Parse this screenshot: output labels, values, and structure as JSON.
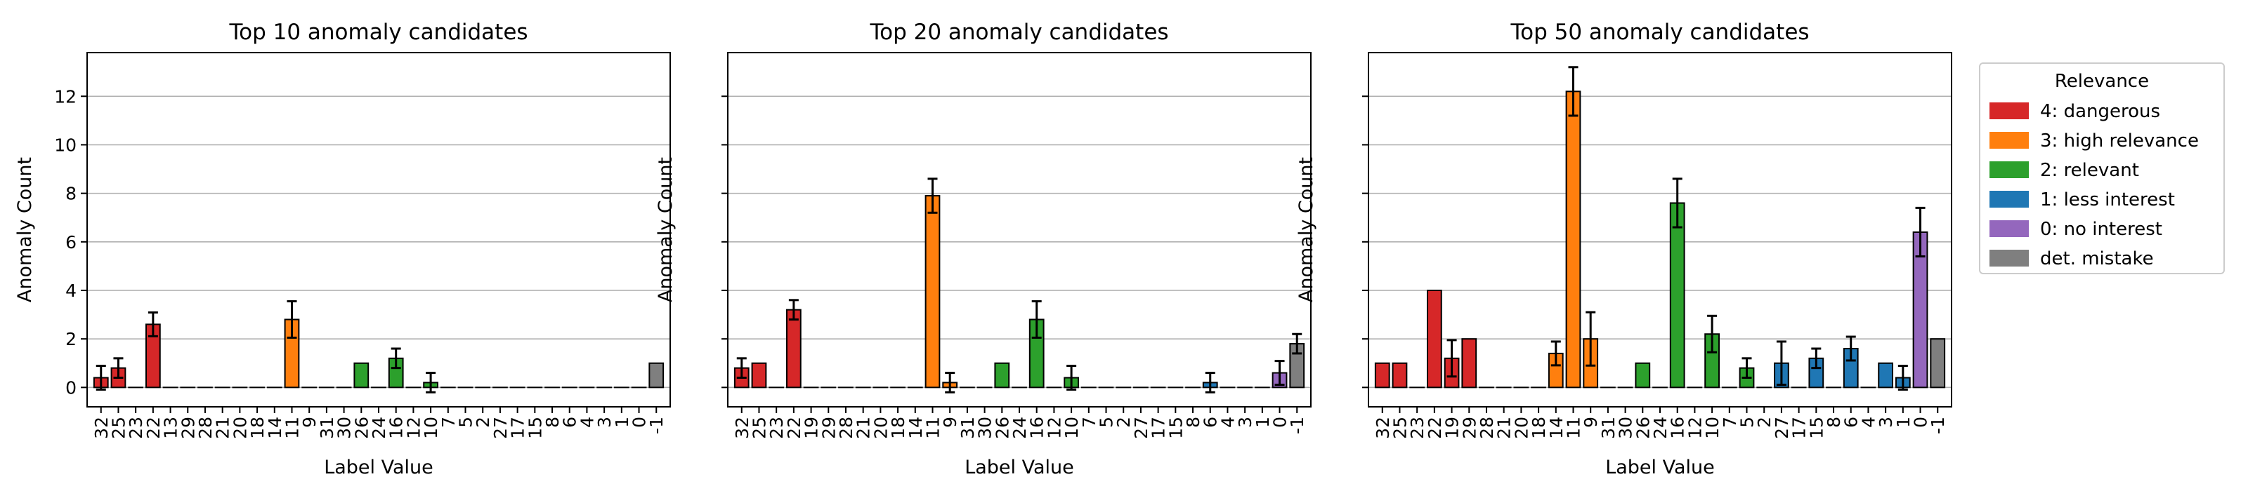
{
  "chart_data": [
    {
      "type": "bar",
      "title": "Top 10 anomaly candidates",
      "xlabel": "Label Value",
      "ylabel": "Anomaly Count",
      "ylim": [
        -0.8,
        13.8
      ],
      "yticks": [
        0,
        2,
        4,
        6,
        8,
        10,
        12
      ],
      "grid": "y",
      "categories": [
        "32",
        "25",
        "23",
        "22",
        "13",
        "29",
        "28",
        "21",
        "20",
        "18",
        "14",
        "11",
        "9",
        "31",
        "30",
        "26",
        "24",
        "16",
        "12",
        "10",
        "7",
        "5",
        "2",
        "27",
        "17",
        "15",
        "8",
        "6",
        "4",
        "3",
        "1",
        "0",
        "-1"
      ],
      "relevance": [
        4,
        4,
        4,
        4,
        3,
        3,
        3,
        3,
        3,
        3,
        3,
        3,
        3,
        2,
        2,
        2,
        2,
        2,
        2,
        2,
        2,
        2,
        2,
        1,
        1,
        1,
        1,
        1,
        1,
        1,
        1,
        0,
        -1
      ],
      "values": [
        0.4,
        0.8,
        0,
        2.6,
        0,
        0,
        0,
        0,
        0,
        0,
        0,
        2.8,
        0,
        0,
        0,
        1,
        0,
        1.2,
        0,
        0.2,
        0,
        0,
        0,
        0,
        0,
        0,
        0,
        0,
        0,
        0,
        0,
        0,
        1
      ],
      "errors": [
        0.49,
        0.4,
        0,
        0.49,
        0,
        0,
        0,
        0,
        0,
        0,
        0,
        0.75,
        0,
        0,
        0,
        0,
        0,
        0.4,
        0,
        0.4,
        0,
        0,
        0,
        0,
        0,
        0,
        0,
        0,
        0,
        0,
        0,
        0,
        0
      ]
    },
    {
      "type": "bar",
      "title": "Top 20 anomaly candidates",
      "xlabel": "Label Value",
      "ylabel": "Anomaly Count",
      "ylim": [
        -0.8,
        13.8
      ],
      "yticks": [
        0,
        2,
        4,
        6,
        8,
        10,
        12
      ],
      "grid": "y",
      "categories": [
        "32",
        "25",
        "23",
        "22",
        "19",
        "29",
        "28",
        "21",
        "20",
        "18",
        "14",
        "11",
        "9",
        "31",
        "30",
        "26",
        "24",
        "16",
        "12",
        "10",
        "7",
        "5",
        "2",
        "27",
        "17",
        "15",
        "8",
        "6",
        "4",
        "3",
        "1",
        "0",
        "-1"
      ],
      "relevance": [
        4,
        4,
        4,
        4,
        4,
        3,
        3,
        3,
        3,
        3,
        3,
        3,
        3,
        2,
        2,
        2,
        2,
        2,
        2,
        2,
        2,
        2,
        2,
        1,
        1,
        1,
        1,
        1,
        1,
        1,
        1,
        0,
        -1
      ],
      "values": [
        0.8,
        1,
        0,
        3.2,
        0,
        0,
        0,
        0,
        0,
        0,
        0,
        7.9,
        0.2,
        0,
        0,
        1,
        0,
        2.8,
        0,
        0.4,
        0,
        0,
        0,
        0,
        0,
        0,
        0,
        0.2,
        0,
        0,
        0,
        0.6,
        1.8
      ],
      "errors": [
        0.4,
        0,
        0,
        0.4,
        0,
        0,
        0,
        0,
        0,
        0,
        0,
        0.7,
        0.4,
        0,
        0,
        0,
        0,
        0.75,
        0,
        0.49,
        0,
        0,
        0,
        0,
        0,
        0,
        0,
        0.4,
        0,
        0,
        0,
        0.49,
        0.4
      ]
    },
    {
      "type": "bar",
      "title": "Top 50 anomaly candidates",
      "xlabel": "Label Value",
      "ylabel": "Anomaly Count",
      "ylim": [
        -0.8,
        13.8
      ],
      "yticks": [
        0,
        2,
        4,
        6,
        8,
        10,
        12
      ],
      "grid": "y",
      "categories": [
        "32",
        "25",
        "23",
        "22",
        "19",
        "29",
        "28",
        "21",
        "20",
        "18",
        "14",
        "11",
        "9",
        "31",
        "30",
        "26",
        "24",
        "16",
        "12",
        "10",
        "7",
        "5",
        "2",
        "27",
        "17",
        "15",
        "8",
        "6",
        "4",
        "3",
        "1",
        "0",
        "-1"
      ],
      "relevance": [
        4,
        4,
        4,
        4,
        4,
        4,
        3,
        3,
        3,
        3,
        3,
        3,
        3,
        2,
        2,
        2,
        2,
        2,
        2,
        2,
        2,
        2,
        2,
        1,
        1,
        1,
        1,
        1,
        1,
        1,
        1,
        0,
        -1
      ],
      "values": [
        1,
        1,
        0,
        4,
        1.2,
        2,
        0,
        0,
        0,
        0,
        1.4,
        12.2,
        2,
        0,
        0,
        1,
        0,
        7.6,
        0,
        2.2,
        0,
        0.8,
        0,
        1,
        0,
        1.2,
        0,
        1.6,
        0,
        1,
        0.4,
        6.4,
        2
      ],
      "errors": [
        0,
        0,
        0,
        0,
        0.75,
        0,
        0,
        0,
        0,
        0,
        0.49,
        1,
        1.1,
        0,
        0,
        0,
        0,
        1,
        0,
        0.75,
        0,
        0.4,
        0,
        0.89,
        0,
        0.4,
        0,
        0.49,
        0,
        0,
        0.49,
        1,
        0
      ]
    }
  ],
  "legend": {
    "title": "Relevance",
    "placement": "outside-right",
    "entries": [
      {
        "label": "4: dangerous",
        "color": "#d62728"
      },
      {
        "label": "3: high relevance",
        "color": "#ff7f0e"
      },
      {
        "label": "2: relevant",
        "color": "#2ca02c"
      },
      {
        "label": "1: less interest",
        "color": "#1f77b4"
      },
      {
        "label": "0: no interest",
        "color": "#9467bd"
      },
      {
        "label": "det. mistake",
        "color": "#7f7f7f"
      }
    ]
  },
  "relevance_colors": {
    "4": "#d62728",
    "3": "#ff7f0e",
    "2": "#2ca02c",
    "1": "#1f77b4",
    "0": "#9467bd",
    "-1": "#7f7f7f"
  }
}
